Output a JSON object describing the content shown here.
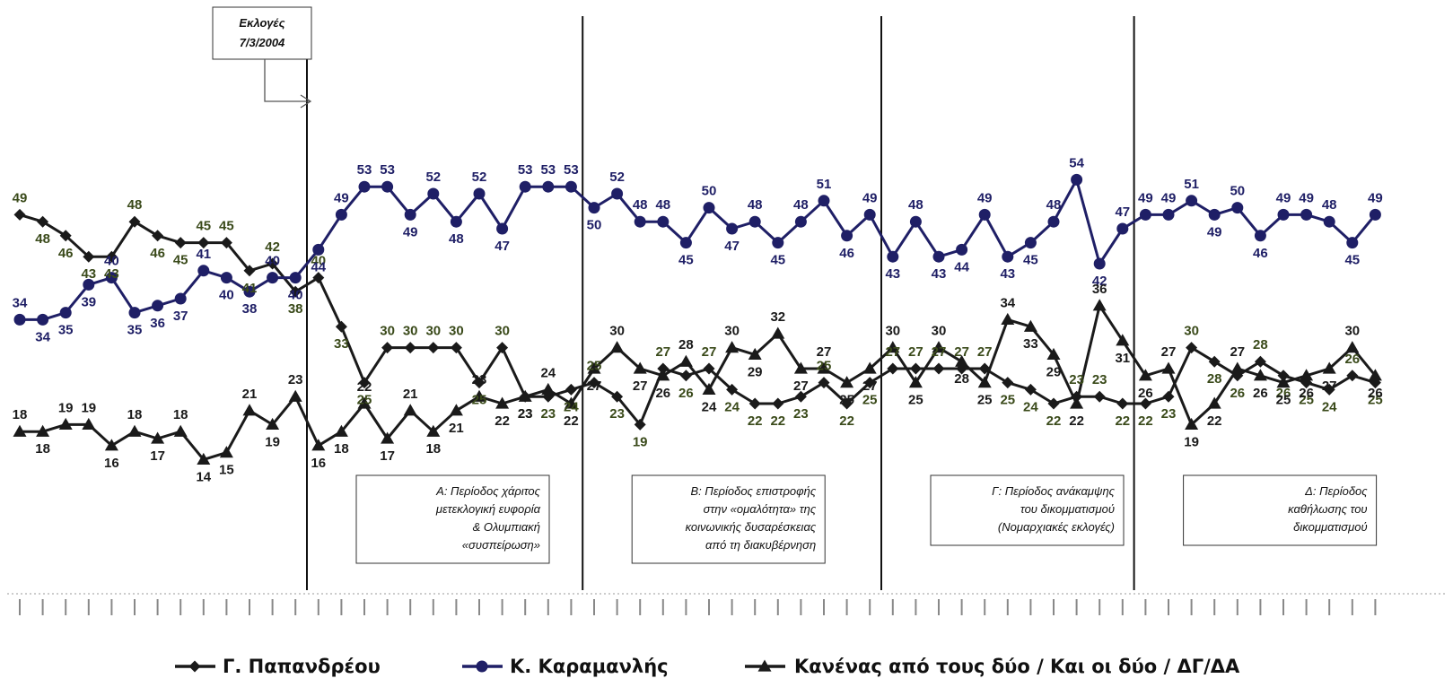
{
  "chart_data": {
    "type": "line",
    "ylim": [
      10,
      56
    ],
    "x_count": 60,
    "series": [
      {
        "name": "Γ. Παπανδρέου",
        "marker": "diamond",
        "color": "#1a1a1a",
        "label_color": "#3a4a1a",
        "values": [
          49,
          48,
          46,
          43,
          43,
          48,
          46,
          45,
          45,
          45,
          41,
          42,
          38,
          40,
          33,
          25,
          30,
          30,
          30,
          30,
          25,
          30,
          23,
          23,
          24,
          25,
          23,
          19,
          27,
          26,
          27,
          24,
          22,
          22,
          23,
          25,
          22,
          25,
          27,
          27,
          27,
          27,
          27,
          25,
          24,
          22,
          23,
          23,
          22,
          22,
          23,
          30,
          28,
          26,
          28,
          26,
          25,
          24,
          26,
          25
        ]
      },
      {
        "name": "Κ. Καραμανλής",
        "marker": "circle",
        "color": "#1f1f66",
        "label_color": "#1f1f66",
        "values": [
          34,
          34,
          35,
          39,
          40,
          35,
          36,
          37,
          41,
          40,
          38,
          40,
          40,
          44,
          49,
          53,
          53,
          49,
          52,
          48,
          52,
          47,
          53,
          53,
          53,
          50,
          52,
          48,
          48,
          45,
          50,
          47,
          48,
          45,
          48,
          51,
          46,
          49,
          43,
          48,
          43,
          44,
          49,
          43,
          45,
          48,
          54,
          42,
          47,
          49,
          49,
          51,
          49,
          50,
          46,
          49,
          49,
          48,
          45,
          49
        ]
      },
      {
        "name": "Κανένας από τους δύο / Και οι δύο / ΔΓ/ΔΑ",
        "marker": "triangle",
        "color": "#1a1a1a",
        "label_color": "#1a1a1a",
        "values": [
          18,
          18,
          19,
          19,
          16,
          18,
          17,
          18,
          14,
          15,
          21,
          19,
          23,
          16,
          18,
          22,
          17,
          21,
          18,
          21,
          23,
          22,
          23,
          24,
          22,
          27,
          30,
          27,
          26,
          28,
          24,
          30,
          29,
          32,
          27,
          27,
          25,
          27,
          30,
          25,
          30,
          28,
          25,
          34,
          33,
          29,
          22,
          36,
          31,
          26,
          27,
          19,
          22,
          27,
          26,
          25,
          26,
          27,
          30,
          26
        ]
      }
    ],
    "dividers_after_index": [
      12,
      24,
      37,
      48
    ],
    "election_annotation": [
      "Εκλογές",
      "7/3/2004"
    ],
    "periods": [
      {
        "lines": [
          "Α: Περίοδος χάριτος",
          "μετεκλογική ευφορία",
          "& Ολυμπιακή",
          "«συσπείρωση»"
        ]
      },
      {
        "lines": [
          "Β: Περίοδος επιστροφής",
          "στην «ομαλότητα» της",
          "κοινωνικής δυσαρέσκειας",
          "από τη διακυβέρνηση"
        ]
      },
      {
        "lines": [
          "Γ: Περίοδος ανάκαμψης",
          "του δικομματισμού",
          "(Νομαρχιακές εκλογές)"
        ]
      },
      {
        "lines": [
          "Δ: Περίοδος",
          "καθήλωσης του",
          "δικομματισμού"
        ]
      }
    ]
  }
}
